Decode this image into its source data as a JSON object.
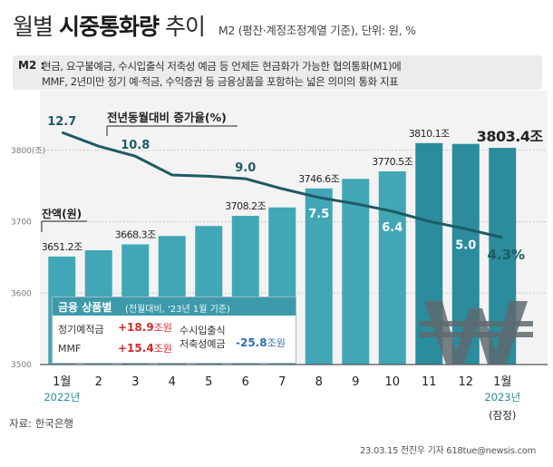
{
  "header": {
    "title_left": "월별",
    "title_bold": "시중통화량",
    "title_right": "추이",
    "subtitle": "M2 (평잔·계정조정계열 기준), 단위: 원, %"
  },
  "definition": {
    "tag": "M2 :",
    "line1": "현금, 요구불예금, 수시입출식 저축성 예금 등 언제든 현금화가 가능한 협의통화(M1)에",
    "line2": "MMF, 2년미만 정기 예·적금, 수익증권 등 금융상품을 포함하는 넓은 의미의 통화 지표"
  },
  "legend_box": {
    "title": "금융 상품별",
    "note": "(전월대비, '23년 1월 기준)",
    "items": [
      {
        "label": "정기예적금",
        "value": "+18.9",
        "unit": "조원"
      },
      {
        "label": "MMF",
        "value": "+15.4",
        "unit": "조원"
      },
      {
        "label": "수시입출식\n저축성예금",
        "value": "-25.8",
        "unit": "조원"
      }
    ]
  },
  "chart_data": {
    "type": "bar",
    "categories": [
      "1월",
      "2",
      "3",
      "4",
      "5",
      "6",
      "7",
      "8",
      "9",
      "10",
      "11",
      "12",
      "1월"
    ],
    "year_labels": [
      {
        "index": 0,
        "text": "2022년"
      },
      {
        "index": 12,
        "text": "2023년"
      }
    ],
    "last_note": "(잠정)",
    "ylim": [
      3500,
      3820
    ],
    "yticks": [
      {
        "value": 3800,
        "label": "3800(조)"
      },
      {
        "value": 3700,
        "label": "3700"
      },
      {
        "value": 3600,
        "label": "3600"
      },
      {
        "value": 3500,
        "label": "3500"
      }
    ],
    "series": [
      {
        "name": "잔액(원)",
        "type": "bar",
        "values": [
          3651.2,
          3660.0,
          3668.3,
          3680.0,
          3694.0,
          3708.2,
          3720.0,
          3746.6,
          3760.0,
          3770.5,
          3810.1,
          3809.0,
          3803.4
        ]
      },
      {
        "name": "전년동월대비 증가율(%)",
        "type": "line",
        "values": [
          12.7,
          11.6,
          10.8,
          9.3,
          9.2,
          9.0,
          8.2,
          7.5,
          7.0,
          6.4,
          5.6,
          5.0,
          4.3
        ]
      }
    ],
    "bar_labels": [
      {
        "index": 0,
        "text": "3651.2조"
      },
      {
        "index": 2,
        "text": "3668.3조"
      },
      {
        "index": 5,
        "text": "3708.2조"
      },
      {
        "index": 7,
        "text": "3746.6조"
      },
      {
        "index": 9,
        "text": "3770.5조"
      },
      {
        "index": 10,
        "text": "3810.1조"
      },
      {
        "index": 12,
        "text": "3803.4조"
      }
    ],
    "line_labels": [
      {
        "index": 0,
        "text": "12.7"
      },
      {
        "index": 2,
        "text": "10.8"
      },
      {
        "index": 5,
        "text": "9.0"
      },
      {
        "index": 7,
        "text": "7.5"
      },
      {
        "index": 9,
        "text": "6.4"
      },
      {
        "index": 11,
        "text": "5.0"
      },
      {
        "index": 12,
        "text": "4.3%"
      }
    ],
    "bar_series_label": "잔액(원)",
    "line_series_label": "전년동월대비 증가율(%)",
    "colors": {
      "bar_light": "#41a7b6",
      "bar_dark": "#2a8c9d",
      "line": "#1f5a64",
      "axis": "#8a8a8a",
      "accent": "#2a8c9d"
    }
  },
  "footer": {
    "source": "자료: 한국은행",
    "credit": "23.03.15 전진우 기자 618tue@newsis.com"
  }
}
